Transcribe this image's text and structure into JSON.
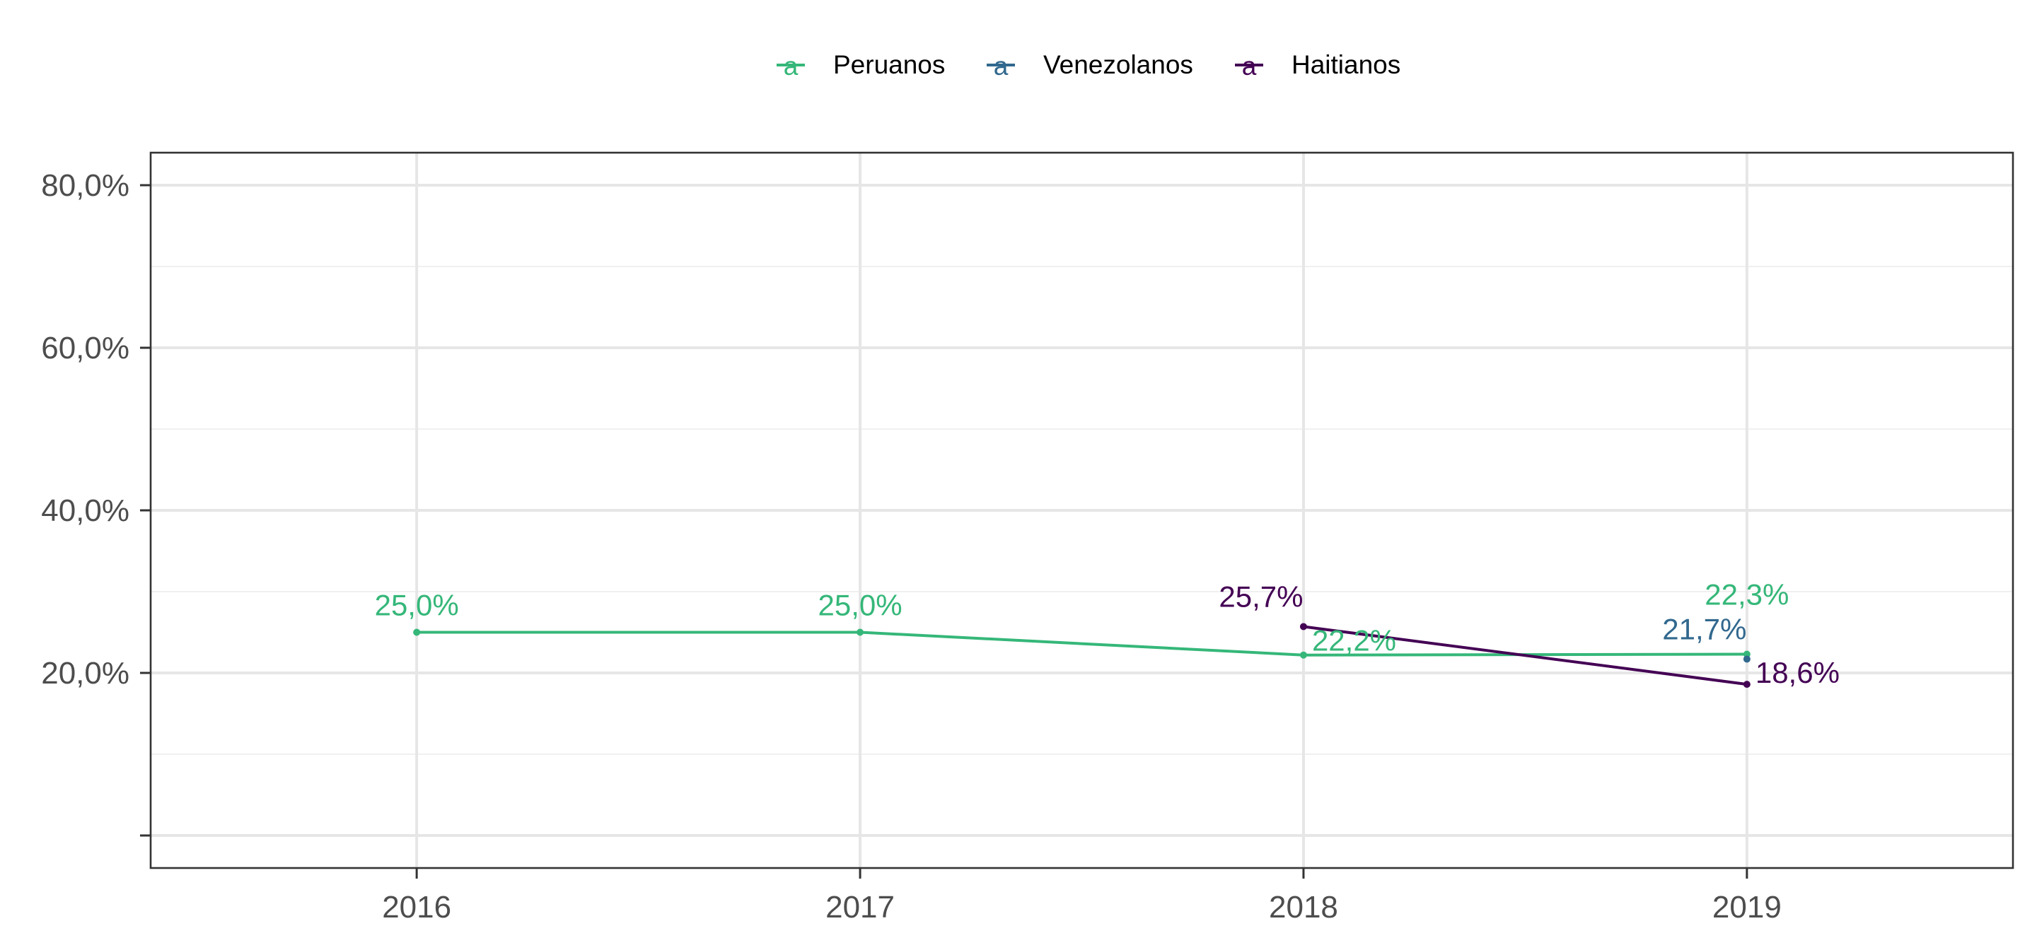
{
  "chart_data": {
    "type": "line",
    "title": "",
    "xlabel": "",
    "ylabel": "",
    "x": [
      2016,
      2017,
      2018,
      2019
    ],
    "x_tick_labels": [
      "2016",
      "2017",
      "2018",
      "2019"
    ],
    "xlim": [
      2015.4,
      2019.6
    ],
    "ylim": [
      -4.0,
      84.0
    ],
    "y_major_ticks": [
      0,
      20,
      40,
      60,
      80
    ],
    "y_tick_labels": [
      "",
      "20,0%",
      "40,0%",
      "60,0%",
      "80,0%"
    ],
    "y_minor_ticks": [
      10,
      30,
      50,
      70
    ],
    "grid": true,
    "legend_position": "top",
    "series": [
      {
        "name": "Peruanos",
        "color": "#35b779",
        "points": [
          {
            "x": 2016,
            "y": 25.0,
            "label": "25,0%",
            "label_pos": "above"
          },
          {
            "x": 2017,
            "y": 25.0,
            "label": "25,0%",
            "label_pos": "above"
          },
          {
            "x": 2018,
            "y": 22.2,
            "label": "22,2%",
            "label_pos": "right-up"
          },
          {
            "x": 2019,
            "y": 22.3,
            "label": "22,3%",
            "label_pos": "high-above"
          }
        ]
      },
      {
        "name": "Venezolanos",
        "color": "#31688e",
        "points": [
          {
            "x": 2019,
            "y": 21.7,
            "label": "21,7%",
            "label_pos": "above-left"
          }
        ]
      },
      {
        "name": "Haitianos",
        "color": "#440154",
        "points": [
          {
            "x": 2018,
            "y": 25.7,
            "label": "25,7%",
            "label_pos": "above-left"
          },
          {
            "x": 2019,
            "y": 18.6,
            "label": "18,6%",
            "label_pos": "right"
          }
        ]
      }
    ]
  }
}
